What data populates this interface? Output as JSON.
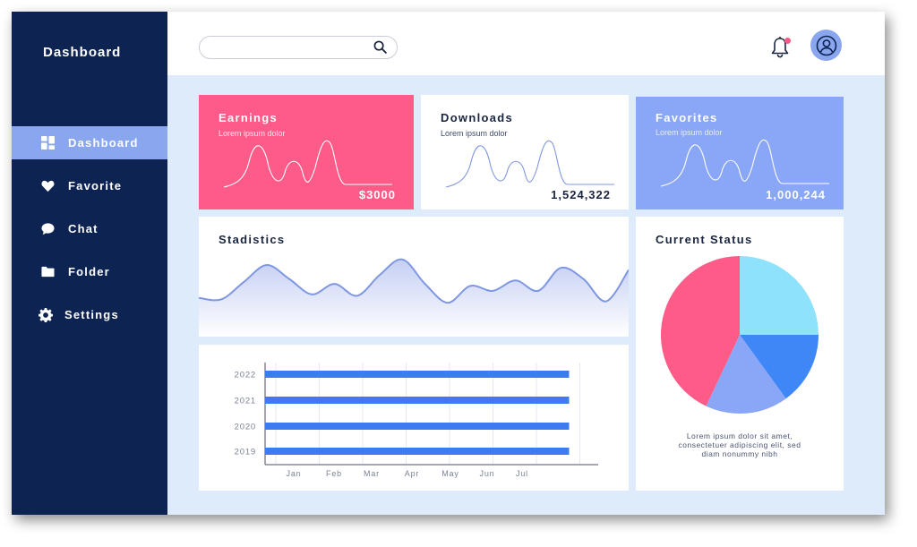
{
  "sidebar": {
    "brand": "Dashboard",
    "items": [
      {
        "label": "Dashboard",
        "icon": "grid-icon",
        "active": true
      },
      {
        "label": "Favorite",
        "icon": "heart-icon",
        "active": false
      },
      {
        "label": "Chat",
        "icon": "chat-bubble-icon",
        "active": false
      },
      {
        "label": "Folder",
        "icon": "folder-icon",
        "active": false
      },
      {
        "label": "Settings",
        "icon": "gear-icon",
        "active": false
      }
    ]
  },
  "header": {
    "search": {
      "value": "",
      "placeholder": ""
    },
    "notification_dot_color": "#f45a85"
  },
  "cards": {
    "earnings": {
      "title": "Earnings",
      "subtitle": "Lorem ipsum dolor",
      "value": "$3000",
      "color": "#ff5b89"
    },
    "downloads": {
      "title": "Downloads",
      "subtitle": "Lorem ipsum dolor",
      "value": "1,524,322",
      "color": "#ffffff"
    },
    "favorites": {
      "title": "Favorites",
      "subtitle": "Lorem ipsum dolor",
      "value": "1,000,244",
      "color": "#8aa6f6"
    }
  },
  "statistics": {
    "title": "Stadistics"
  },
  "status": {
    "title": "Current Status",
    "caption": [
      "Lorem ipsum dolor sit amet,",
      "consectetuer adipiscing elit, sed",
      "diam nonummy nibh"
    ]
  },
  "chart_data": [
    {
      "type": "area",
      "title": "Stadistics",
      "x": [
        0,
        1,
        2,
        3,
        4,
        5,
        6,
        7,
        8,
        9,
        10,
        11,
        12,
        13,
        14,
        15,
        16,
        17,
        18,
        19
      ],
      "values": [
        35,
        33,
        58,
        82,
        62,
        40,
        55,
        38,
        68,
        90,
        55,
        28,
        52,
        45,
        60,
        45,
        78,
        62,
        30,
        75
      ],
      "ylim": [
        0,
        100
      ],
      "color": "#7f97e3",
      "grid": false
    },
    {
      "type": "bar",
      "orientation": "horizontal",
      "categories": [
        "2022",
        "2021",
        "2020",
        "2019"
      ],
      "values": [
        7,
        7,
        7,
        7
      ],
      "xticks": [
        "Jan",
        "Feb",
        "Mar",
        "Apr",
        "May",
        "Jun",
        "Jul"
      ],
      "xlim": [
        0,
        7.5
      ],
      "color": "#3f7bf0",
      "grid": true
    },
    {
      "type": "pie",
      "title": "Current Status",
      "values": [
        25,
        15,
        17,
        43
      ],
      "colors": [
        "#8fe2fb",
        "#3f86f7",
        "#8aa6f6",
        "#ff5b89"
      ]
    }
  ]
}
